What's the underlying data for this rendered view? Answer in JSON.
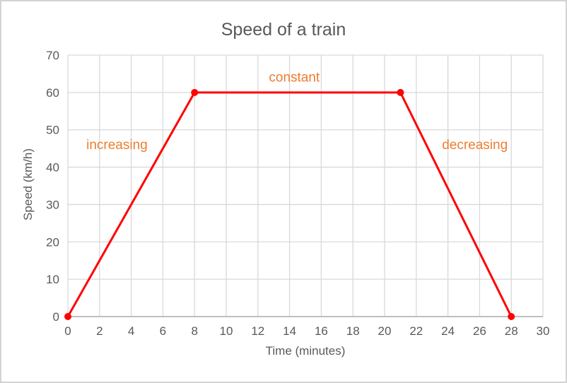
{
  "frame": {
    "background": "#ffffff",
    "border_color": "#d3d3d3"
  },
  "chart_data": {
    "type": "line",
    "title": "Speed of a train",
    "xlabel": "Time (minutes)",
    "ylabel": "Speed (km/h)",
    "x": [
      0,
      8,
      21,
      28
    ],
    "y": [
      0,
      60,
      60,
      0
    ],
    "xlim": [
      0,
      30
    ],
    "ylim": [
      0,
      70
    ],
    "x_tick_step": 2,
    "y_tick_step": 10,
    "grid": true,
    "legend": "none",
    "line_color": "#ff0000",
    "marker_color": "#ff0000",
    "gridline_color": "#d9d9d9",
    "axis_line_color": "#bfbfbf",
    "text_color": "#595959",
    "annotation_color": "#ed7d31",
    "annotations": [
      {
        "text": "increasing",
        "x": 3.1,
        "y": 46
      },
      {
        "text": "constant",
        "x": 14.3,
        "y": 64
      },
      {
        "text": "decreasing",
        "x": 25.7,
        "y": 46
      }
    ]
  }
}
